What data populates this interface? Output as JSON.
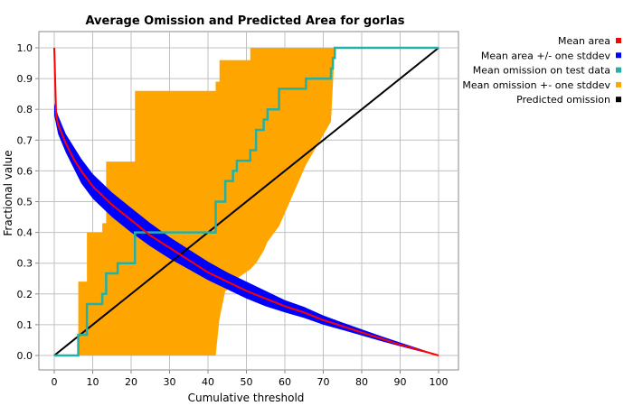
{
  "chart_data": {
    "type": "line",
    "title": "Average Omission and Predicted Area for gorlas",
    "xlabel": "Cumulative threshold",
    "ylabel": "Fractional value",
    "xlim": [
      0,
      100
    ],
    "ylim": [
      0,
      1
    ],
    "x_ticks": [
      "0",
      "10",
      "20",
      "30",
      "40",
      "50",
      "60",
      "70",
      "80",
      "90",
      "100"
    ],
    "y_ticks": [
      "0.0",
      "0.1",
      "0.2",
      "0.3",
      "0.4",
      "0.5",
      "0.6",
      "0.7",
      "0.8",
      "0.9",
      "1.0"
    ],
    "grid": true,
    "legend_position": "right",
    "colors": {
      "mean_area": "#ff0000",
      "area_band": "#0000ff",
      "omission_test": "#20b2aa",
      "omission_band": "#ffa500",
      "predicted": "#000000"
    },
    "series": [
      {
        "name": "Mean area",
        "x": [
          0,
          0.5,
          1,
          2,
          3,
          5,
          7,
          10,
          15,
          20,
          25,
          30,
          35,
          40,
          45,
          50,
          55,
          60,
          65,
          70,
          75,
          80,
          85,
          90,
          95,
          100
        ],
        "y": [
          1.0,
          0.78,
          0.75,
          0.72,
          0.69,
          0.64,
          0.6,
          0.55,
          0.49,
          0.44,
          0.39,
          0.35,
          0.31,
          0.27,
          0.24,
          0.21,
          0.185,
          0.16,
          0.14,
          0.115,
          0.095,
          0.075,
          0.055,
          0.035,
          0.018,
          0.0
        ]
      },
      {
        "name": "Mean area +/- one stddev",
        "x": [
          0,
          1,
          2,
          3,
          5,
          7,
          10,
          15,
          20,
          25,
          30,
          35,
          40,
          45,
          50,
          55,
          60,
          65,
          70,
          75,
          80,
          85,
          90,
          95,
          100
        ],
        "upper": [
          0.82,
          0.78,
          0.75,
          0.72,
          0.68,
          0.64,
          0.59,
          0.53,
          0.48,
          0.43,
          0.385,
          0.345,
          0.305,
          0.27,
          0.24,
          0.21,
          0.18,
          0.158,
          0.13,
          0.107,
          0.085,
          0.063,
          0.042,
          0.022,
          0.0
        ],
        "lower": [
          0.78,
          0.72,
          0.69,
          0.66,
          0.61,
          0.56,
          0.51,
          0.45,
          0.4,
          0.355,
          0.315,
          0.28,
          0.245,
          0.215,
          0.185,
          0.16,
          0.14,
          0.122,
          0.1,
          0.083,
          0.065,
          0.047,
          0.03,
          0.014,
          0.0
        ]
      },
      {
        "name": "Mean omission on test data",
        "x": [
          0,
          6.25,
          6.25,
          8.5,
          8.5,
          12.5,
          12.5,
          13.5,
          13.5,
          16.5,
          16.5,
          21,
          21,
          42,
          42,
          44.5,
          44.5,
          46.5,
          46.5,
          47.5,
          47.5,
          51,
          51,
          52.5,
          52.5,
          54.5,
          54.5,
          55.5,
          55.5,
          58.5,
          58.5,
          65.5,
          65.5,
          72,
          72,
          72.5,
          72.5,
          73,
          73,
          100
        ],
        "y": [
          0,
          0,
          0.067,
          0.067,
          0.167,
          0.167,
          0.2,
          0.2,
          0.267,
          0.267,
          0.3,
          0.3,
          0.4,
          0.4,
          0.5,
          0.5,
          0.567,
          0.567,
          0.6,
          0.6,
          0.633,
          0.633,
          0.667,
          0.667,
          0.733,
          0.733,
          0.767,
          0.767,
          0.8,
          0.8,
          0.867,
          0.867,
          0.9,
          0.9,
          0.933,
          0.933,
          0.967,
          0.967,
          1.0,
          1.0
        ]
      },
      {
        "name": "Mean omission +- one stddev",
        "x": [
          0,
          6.25,
          6.25,
          8.5,
          8.5,
          12.5,
          12.5,
          13.5,
          13.5,
          21,
          21,
          42,
          42,
          43,
          43,
          44.5,
          44.5,
          46.5,
          46.5,
          47.5,
          47.5,
          51,
          51,
          52.5,
          52.5,
          54.5,
          54.5,
          55.5,
          55.5,
          58.5,
          58.5,
          65.5,
          65.5,
          72,
          72,
          73,
          73,
          100
        ],
        "upper": [
          0,
          0,
          0.24,
          0.24,
          0.4,
          0.4,
          0.43,
          0.43,
          0.63,
          0.63,
          0.86,
          0.86,
          0.89,
          0.89,
          0.96,
          0.96,
          0.96,
          0.96,
          0.96,
          0.96,
          0.96,
          0.96,
          1.0,
          1.0,
          1.0,
          1.0,
          1.0,
          1.0,
          1.0,
          1.0,
          1.0,
          1.0,
          1.0,
          1.0,
          1.0,
          1.0,
          1.0,
          1.0
        ],
        "lower": [
          0,
          0,
          0,
          0,
          0,
          0,
          0,
          0,
          0,
          0,
          0,
          0,
          0.0,
          0.12,
          0.12,
          0.21,
          0.21,
          0.22,
          0.22,
          0.25,
          0.25,
          0.28,
          0.28,
          0.3,
          0.3,
          0.34,
          0.34,
          0.37,
          0.37,
          0.42,
          0.42,
          0.62,
          0.62,
          0.76,
          0.76,
          1.0,
          1.0,
          1.0
        ]
      },
      {
        "name": "Predicted omission",
        "x": [
          0,
          100
        ],
        "y": [
          0,
          1.0
        ]
      }
    ]
  }
}
